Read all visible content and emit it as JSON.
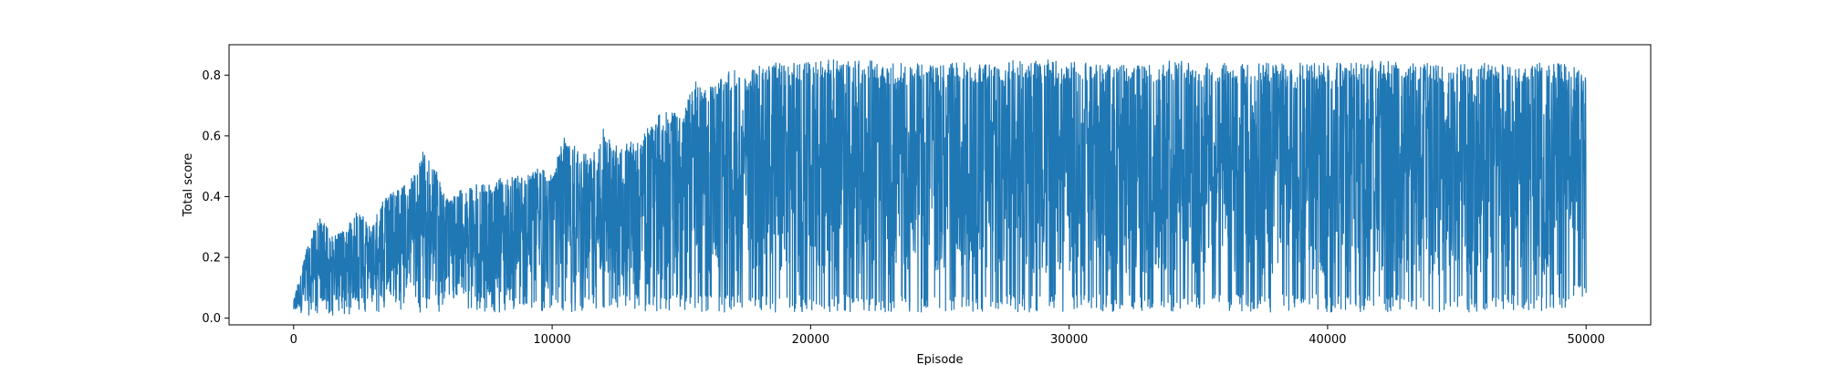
{
  "chart_data": {
    "type": "line",
    "title": "",
    "xlabel": "Episode",
    "ylabel": "Total score",
    "xlim": [
      -2500,
      52500
    ],
    "ylim": [
      -0.022,
      0.9
    ],
    "xticks": [
      0,
      10000,
      20000,
      30000,
      40000,
      50000
    ],
    "yticks": [
      0.0,
      0.2,
      0.4,
      0.6,
      0.8
    ],
    "xtick_labels": [
      "0",
      "10000",
      "20000",
      "30000",
      "40000",
      "50000"
    ],
    "ytick_labels": [
      "0.0",
      "0.2",
      "0.4",
      "0.6",
      "0.8"
    ],
    "grid": false,
    "legend": "none",
    "series": [
      {
        "color": "#1f77b4",
        "x": [
          0,
          500,
          1000,
          1500,
          2000,
          2500,
          3000,
          3500,
          4000,
          4500,
          5000,
          5500,
          6000,
          6500,
          7000,
          7500,
          8000,
          8500,
          9000,
          9500,
          10000,
          10500,
          11000,
          11500,
          12000,
          12500,
          13000,
          13500,
          14000,
          14500,
          15000,
          15500,
          16000,
          16500,
          17000,
          17500,
          18000,
          19000,
          20000,
          21000,
          22000,
          23000,
          24000,
          25000,
          26000,
          27000,
          28000,
          29000,
          30000,
          31000,
          32000,
          33000,
          34000,
          35000,
          36000,
          37000,
          38000,
          39000,
          40000,
          41000,
          42000,
          43000,
          44000,
          45000,
          46000,
          47000,
          48000,
          49000,
          50000
        ],
        "max": [
          0.06,
          0.23,
          0.34,
          0.27,
          0.29,
          0.36,
          0.3,
          0.4,
          0.42,
          0.45,
          0.55,
          0.49,
          0.38,
          0.43,
          0.44,
          0.44,
          0.46,
          0.47,
          0.47,
          0.5,
          0.47,
          0.61,
          0.55,
          0.54,
          0.63,
          0.57,
          0.59,
          0.6,
          0.67,
          0.69,
          0.66,
          0.79,
          0.75,
          0.8,
          0.82,
          0.8,
          0.84,
          0.84,
          0.85,
          0.85,
          0.85,
          0.84,
          0.84,
          0.84,
          0.84,
          0.84,
          0.85,
          0.85,
          0.85,
          0.84,
          0.84,
          0.84,
          0.85,
          0.84,
          0.84,
          0.84,
          0.84,
          0.84,
          0.84,
          0.84,
          0.85,
          0.84,
          0.84,
          0.84,
          0.84,
          0.84,
          0.84,
          0.84,
          0.82
        ],
        "min": [
          0.01,
          0.01,
          0.01,
          0.01,
          0.01,
          0.01,
          0.02,
          0.02,
          0.02,
          0.02,
          0.02,
          0.02,
          0.02,
          0.02,
          0.02,
          0.02,
          0.02,
          0.02,
          0.02,
          0.02,
          0.02,
          0.02,
          0.02,
          0.02,
          0.02,
          0.02,
          0.02,
          0.02,
          0.02,
          0.02,
          0.02,
          0.02,
          0.02,
          0.02,
          0.02,
          0.02,
          0.02,
          0.02,
          0.02,
          0.02,
          0.02,
          0.02,
          0.02,
          0.02,
          0.02,
          0.02,
          0.02,
          0.02,
          0.02,
          0.02,
          0.02,
          0.02,
          0.02,
          0.02,
          0.02,
          0.02,
          0.02,
          0.02,
          0.02,
          0.02,
          0.02,
          0.02,
          0.02,
          0.02,
          0.02,
          0.02,
          0.02,
          0.02,
          0.08
        ]
      }
    ]
  }
}
